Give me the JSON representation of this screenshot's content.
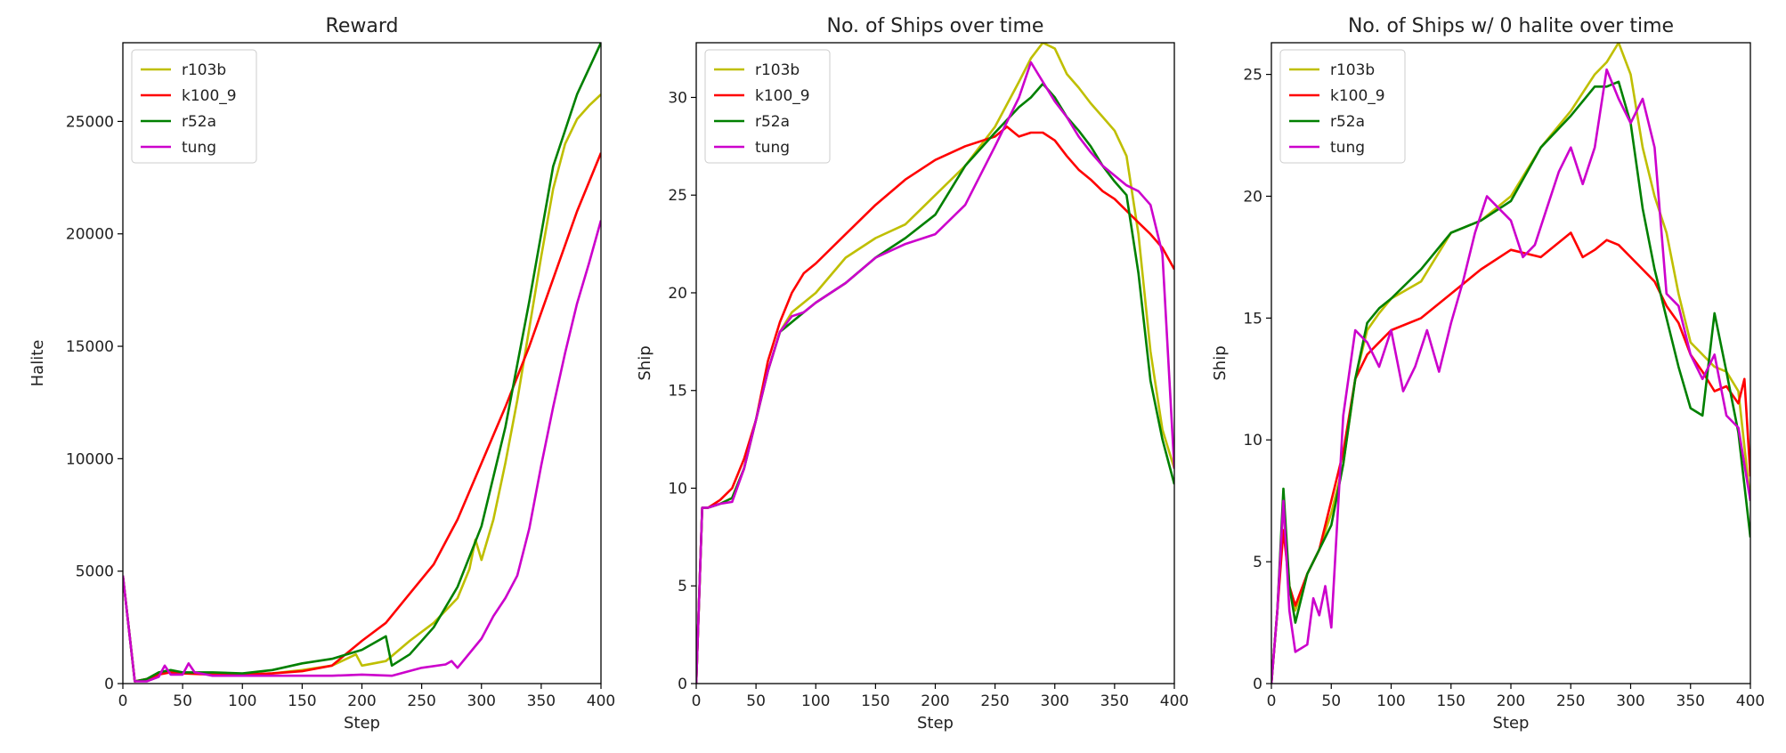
{
  "chart_data": [
    {
      "type": "line",
      "title": "Reward",
      "xlabel": "Step",
      "ylabel": "Halite",
      "xlim": [
        0,
        400
      ],
      "ylim": [
        0,
        28500
      ],
      "xticks": [
        0,
        50,
        100,
        150,
        200,
        250,
        300,
        350,
        400
      ],
      "yticks": [
        0,
        5000,
        10000,
        15000,
        20000,
        25000
      ],
      "legend": "top-left",
      "series": [
        {
          "name": "r103b",
          "color": "#bfbf00",
          "x": [
            0,
            10,
            20,
            30,
            40,
            50,
            75,
            100,
            125,
            150,
            175,
            195,
            200,
            210,
            220,
            240,
            260,
            280,
            290,
            295,
            300,
            310,
            320,
            330,
            340,
            350,
            360,
            370,
            380,
            390,
            400
          ],
          "y": [
            4800,
            100,
            200,
            450,
            550,
            500,
            450,
            400,
            450,
            600,
            800,
            1300,
            800,
            900,
            1000,
            1900,
            2700,
            3800,
            5100,
            6400,
            5500,
            7300,
            9800,
            12600,
            15800,
            19000,
            22000,
            24000,
            25100,
            25700,
            26200
          ]
        },
        {
          "name": "k100_9",
          "color": "#ff0000",
          "x": [
            0,
            10,
            20,
            30,
            40,
            50,
            75,
            100,
            125,
            150,
            175,
            200,
            220,
            240,
            260,
            280,
            300,
            320,
            340,
            360,
            380,
            400
          ],
          "y": [
            4800,
            100,
            200,
            400,
            500,
            450,
            400,
            400,
            450,
            550,
            800,
            1900,
            2700,
            4000,
            5300,
            7300,
            9800,
            12300,
            15000,
            18000,
            21000,
            23600
          ]
        },
        {
          "name": "r52a",
          "color": "#008000",
          "x": [
            0,
            10,
            20,
            30,
            40,
            50,
            75,
            100,
            125,
            150,
            175,
            200,
            220,
            225,
            240,
            260,
            280,
            300,
            320,
            340,
            360,
            380,
            400
          ],
          "y": [
            4800,
            100,
            200,
            500,
            600,
            500,
            500,
            450,
            600,
            900,
            1100,
            1500,
            2100,
            800,
            1300,
            2500,
            4300,
            7000,
            11400,
            17000,
            23000,
            26200,
            28500
          ]
        },
        {
          "name": "tung",
          "color": "#cc00cc",
          "x": [
            0,
            10,
            20,
            30,
            35,
            40,
            50,
            55,
            60,
            75,
            100,
            125,
            150,
            175,
            200,
            225,
            250,
            270,
            275,
            280,
            300,
            310,
            320,
            330,
            340,
            350,
            360,
            370,
            380,
            390,
            400
          ],
          "y": [
            4800,
            100,
            100,
            300,
            800,
            400,
            400,
            900,
            500,
            350,
            350,
            350,
            350,
            350,
            400,
            350,
            700,
            850,
            1000,
            700,
            2000,
            3000,
            3800,
            4800,
            6900,
            9700,
            12300,
            14700,
            16900,
            18700,
            20600
          ]
        }
      ]
    },
    {
      "type": "line",
      "title": "No. of Ships over time",
      "xlabel": "Step",
      "ylabel": "Ship",
      "xlim": [
        0,
        400
      ],
      "ylim": [
        0,
        32.8
      ],
      "xticks": [
        0,
        50,
        100,
        150,
        200,
        250,
        300,
        350,
        400
      ],
      "yticks": [
        0,
        5,
        10,
        15,
        20,
        25,
        30
      ],
      "legend": "top-left",
      "series": [
        {
          "name": "r103b",
          "color": "#bfbf00",
          "x": [
            0,
            5,
            10,
            20,
            30,
            40,
            50,
            60,
            70,
            80,
            90,
            100,
            125,
            150,
            175,
            200,
            225,
            250,
            270,
            280,
            290,
            300,
            310,
            320,
            330,
            340,
            350,
            360,
            370,
            380,
            390,
            400
          ],
          "y": [
            0,
            9,
            9,
            9.2,
            9.5,
            11,
            13.5,
            16,
            18,
            19,
            19.5,
            20,
            21.8,
            22.8,
            23.5,
            25,
            26.5,
            28.5,
            30.8,
            32,
            32.8,
            32.5,
            31.2,
            30.5,
            29.7,
            29,
            28.3,
            27,
            23,
            17,
            13,
            11
          ]
        },
        {
          "name": "k100_9",
          "color": "#ff0000",
          "x": [
            0,
            5,
            10,
            20,
            30,
            40,
            50,
            60,
            70,
            80,
            90,
            100,
            125,
            150,
            175,
            200,
            225,
            250,
            260,
            270,
            280,
            290,
            300,
            310,
            320,
            330,
            340,
            350,
            360,
            370,
            380,
            390,
            400
          ],
          "y": [
            0,
            9,
            9,
            9.4,
            10,
            11.5,
            13.5,
            16.5,
            18.5,
            20,
            21,
            21.5,
            23,
            24.5,
            25.8,
            26.8,
            27.5,
            28,
            28.5,
            28,
            28.2,
            28.2,
            27.8,
            27,
            26.3,
            25.8,
            25.2,
            24.8,
            24.2,
            23.6,
            23,
            22.3,
            21.2
          ]
        },
        {
          "name": "r52a",
          "color": "#008000",
          "x": [
            0,
            5,
            10,
            20,
            30,
            40,
            50,
            60,
            70,
            80,
            90,
            100,
            125,
            150,
            175,
            200,
            225,
            250,
            270,
            280,
            290,
            300,
            310,
            320,
            330,
            340,
            350,
            360,
            370,
            380,
            390,
            400
          ],
          "y": [
            0,
            9,
            9,
            9.2,
            9.5,
            11,
            13.5,
            16,
            18,
            18.5,
            19,
            19.5,
            20.5,
            21.8,
            22.8,
            24,
            26.5,
            28.2,
            29.5,
            30,
            30.7,
            30,
            29,
            28.3,
            27.5,
            26.5,
            25.7,
            25,
            21,
            15.5,
            12.5,
            10.2
          ]
        },
        {
          "name": "tung",
          "color": "#cc00cc",
          "x": [
            0,
            5,
            10,
            20,
            30,
            40,
            50,
            60,
            70,
            80,
            90,
            100,
            125,
            150,
            175,
            200,
            225,
            250,
            270,
            280,
            290,
            300,
            310,
            320,
            330,
            340,
            350,
            360,
            370,
            380,
            390,
            400
          ],
          "y": [
            0,
            9,
            9,
            9.2,
            9.3,
            11,
            13.5,
            16,
            18,
            18.8,
            19,
            19.5,
            20.5,
            21.8,
            22.5,
            23,
            24.5,
            27.5,
            30,
            31.8,
            30.8,
            29.8,
            29,
            28,
            27.2,
            26.5,
            26,
            25.5,
            25.2,
            24.5,
            22,
            11
          ]
        }
      ]
    },
    {
      "type": "line",
      "title": "No. of Ships w/ 0 halite over time",
      "xlabel": "Step",
      "ylabel": "Ship",
      "xlim": [
        0,
        400
      ],
      "ylim": [
        0,
        26.3
      ],
      "xticks": [
        0,
        50,
        100,
        150,
        200,
        250,
        300,
        350,
        400
      ],
      "yticks": [
        0,
        5,
        10,
        15,
        20,
        25
      ],
      "legend": "top-left",
      "series": [
        {
          "name": "r103b",
          "color": "#bfbf00",
          "x": [
            0,
            5,
            10,
            15,
            20,
            30,
            40,
            50,
            60,
            70,
            80,
            90,
            100,
            125,
            150,
            175,
            200,
            225,
            250,
            270,
            280,
            290,
            300,
            310,
            320,
            330,
            340,
            350,
            360,
            370,
            380,
            390,
            400
          ],
          "y": [
            0,
            3,
            7.5,
            4,
            3,
            4.5,
            5.5,
            7,
            9,
            12.5,
            14.5,
            15.2,
            15.8,
            16.5,
            18.5,
            19,
            20,
            22,
            23.5,
            25,
            25.5,
            26.3,
            25,
            22,
            20,
            18.5,
            16,
            14,
            13.5,
            13,
            12.8,
            12,
            7.5
          ]
        },
        {
          "name": "k100_9",
          "color": "#ff0000",
          "x": [
            0,
            5,
            10,
            15,
            20,
            30,
            40,
            50,
            60,
            70,
            80,
            90,
            100,
            125,
            150,
            175,
            200,
            225,
            250,
            260,
            270,
            280,
            290,
            300,
            310,
            320,
            330,
            340,
            350,
            360,
            370,
            380,
            390,
            395,
            400
          ],
          "y": [
            0,
            3,
            6.3,
            4,
            3.2,
            4.5,
            5.5,
            7.5,
            9.5,
            12.5,
            13.5,
            14,
            14.5,
            15,
            16,
            17,
            17.8,
            17.5,
            18.5,
            17.5,
            17.8,
            18.2,
            18,
            17.5,
            17,
            16.5,
            15.5,
            14.8,
            13.5,
            12.8,
            12,
            12.2,
            11.5,
            12.5,
            8.5
          ]
        },
        {
          "name": "r52a",
          "color": "#008000",
          "x": [
            0,
            5,
            10,
            15,
            20,
            30,
            40,
            50,
            60,
            70,
            80,
            90,
            100,
            125,
            150,
            175,
            200,
            225,
            250,
            270,
            280,
            290,
            300,
            310,
            320,
            330,
            340,
            350,
            360,
            370,
            380,
            390,
            400
          ],
          "y": [
            0,
            3,
            8,
            4,
            2.5,
            4.5,
            5.5,
            6.5,
            9,
            12.5,
            14.8,
            15.4,
            15.8,
            17,
            18.5,
            19,
            19.8,
            22,
            23.3,
            24.5,
            24.5,
            24.7,
            23,
            19.5,
            17,
            15,
            13,
            11.3,
            11,
            15.2,
            12.8,
            10.3,
            6
          ]
        },
        {
          "name": "tung",
          "color": "#cc00cc",
          "x": [
            0,
            5,
            10,
            15,
            20,
            30,
            35,
            40,
            45,
            50,
            60,
            70,
            80,
            90,
            100,
            110,
            120,
            130,
            140,
            150,
            160,
            170,
            180,
            190,
            200,
            210,
            220,
            230,
            240,
            250,
            260,
            270,
            280,
            290,
            300,
            310,
            320,
            330,
            340,
            350,
            360,
            370,
            380,
            390,
            400
          ],
          "y": [
            0,
            3,
            7.5,
            3,
            1.3,
            1.6,
            3.5,
            2.8,
            4,
            2.3,
            11,
            14.5,
            14,
            13,
            14.5,
            12,
            13,
            14.5,
            12.8,
            14.8,
            16.5,
            18.5,
            20,
            19.5,
            19,
            17.5,
            18,
            19.5,
            21,
            22,
            20.5,
            22,
            25.2,
            24,
            23,
            24,
            22,
            16,
            15.5,
            13.5,
            12.5,
            13.5,
            11,
            10.5,
            7.5
          ]
        }
      ]
    }
  ]
}
